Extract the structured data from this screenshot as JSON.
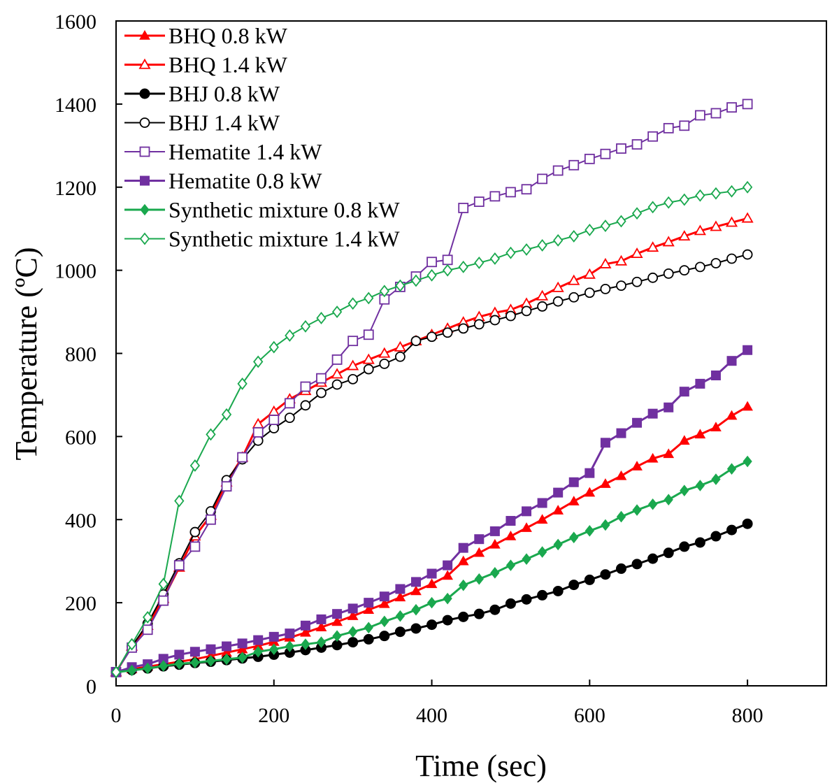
{
  "chart_data": {
    "type": "line",
    "title": "",
    "xlabel": "Time (sec)",
    "ylabel": "Temperature (ºC)",
    "xlim": [
      0,
      900
    ],
    "ylim": [
      0,
      1600
    ],
    "xticks": [
      0,
      200,
      400,
      600,
      800
    ],
    "yticks": [
      0,
      200,
      400,
      600,
      800,
      1000,
      1200,
      1400,
      1600
    ],
    "grid": false,
    "legend_position": "top-left",
    "x": [
      0,
      20,
      40,
      60,
      80,
      100,
      120,
      140,
      160,
      180,
      200,
      220,
      240,
      260,
      280,
      300,
      320,
      340,
      360,
      380,
      400,
      420,
      440,
      460,
      480,
      500,
      520,
      540,
      560,
      580,
      600,
      620,
      640,
      660,
      680,
      700,
      720,
      740,
      760,
      780,
      800
    ],
    "series": [
      {
        "name": "BHQ 0.8 kW",
        "color": "#ff0000",
        "marker": "triangle",
        "filled": true,
        "line_width": 3,
        "values": [
          33,
          40,
          46,
          52,
          58,
          64,
          72,
          80,
          88,
          96,
          106,
          116,
          128,
          141,
          154,
          168,
          183,
          197,
          213,
          228,
          245,
          265,
          300,
          320,
          340,
          360,
          380,
          400,
          422,
          444,
          465,
          486,
          505,
          528,
          547,
          558,
          590,
          605,
          622,
          650,
          672
        ]
      },
      {
        "name": "BHQ 1.4 kW",
        "color": "#ff0000",
        "marker": "triangle",
        "filled": false,
        "line_width": 3,
        "values": [
          33,
          95,
          145,
          210,
          285,
          360,
          410,
          490,
          550,
          630,
          660,
          690,
          710,
          730,
          750,
          770,
          785,
          800,
          815,
          830,
          845,
          860,
          875,
          888,
          898,
          905,
          920,
          938,
          958,
          975,
          990,
          1015,
          1022,
          1040,
          1055,
          1068,
          1082,
          1095,
          1105,
          1115,
          1125
        ]
      },
      {
        "name": "BHJ 0.8 kW",
        "color": "#000000",
        "marker": "circle",
        "filled": true,
        "line_width": 3,
        "values": [
          33,
          38,
          42,
          47,
          51,
          55,
          58,
          62,
          66,
          70,
          75,
          80,
          86,
          92,
          98,
          105,
          112,
          120,
          130,
          138,
          147,
          158,
          166,
          173,
          183,
          198,
          208,
          218,
          228,
          243,
          255,
          268,
          282,
          293,
          306,
          320,
          335,
          345,
          360,
          375,
          390
        ]
      },
      {
        "name": "BHJ 1.4 kW",
        "color": "#000000",
        "marker": "circle",
        "filled": false,
        "line_width": 2,
        "values": [
          33,
          95,
          150,
          220,
          295,
          370,
          420,
          495,
          545,
          590,
          620,
          645,
          675,
          705,
          725,
          738,
          762,
          775,
          792,
          830,
          840,
          850,
          860,
          870,
          880,
          890,
          902,
          913,
          925,
          935,
          946,
          955,
          963,
          972,
          982,
          992,
          1000,
          1008,
          1017,
          1028,
          1038
        ]
      },
      {
        "name": "Hematite 1.4 kW",
        "color": "#7030a0",
        "marker": "square",
        "filled": false,
        "line_width": 2,
        "values": [
          33,
          92,
          135,
          205,
          290,
          335,
          400,
          480,
          550,
          610,
          640,
          680,
          720,
          740,
          785,
          830,
          845,
          930,
          960,
          985,
          1020,
          1025,
          1150,
          1165,
          1178,
          1188,
          1195,
          1220,
          1240,
          1253,
          1268,
          1280,
          1293,
          1303,
          1322,
          1342,
          1348,
          1373,
          1378,
          1392,
          1400
        ]
      },
      {
        "name": "Hematite 0.8 kW",
        "color": "#7030a0",
        "marker": "square",
        "filled": true,
        "line_width": 3,
        "values": [
          33,
          45,
          52,
          65,
          75,
          82,
          88,
          95,
          102,
          110,
          118,
          126,
          145,
          160,
          173,
          186,
          200,
          215,
          233,
          250,
          270,
          290,
          332,
          353,
          372,
          397,
          420,
          440,
          465,
          490,
          512,
          585,
          608,
          633,
          655,
          670,
          708,
          727,
          747,
          782,
          808
        ]
      },
      {
        "name": "Synthetic mixture 0.8 kW",
        "color": "#1aa84e",
        "marker": "diamond",
        "filled": true,
        "line_width": 3,
        "values": [
          33,
          37,
          42,
          48,
          53,
          56,
          60,
          64,
          68,
          82,
          88,
          95,
          100,
          105,
          120,
          130,
          140,
          155,
          168,
          183,
          200,
          210,
          242,
          257,
          272,
          290,
          305,
          322,
          340,
          357,
          373,
          387,
          407,
          423,
          437,
          448,
          470,
          482,
          497,
          522,
          540
        ]
      },
      {
        "name": "Synthetic mixture 1.4 kW",
        "color": "#1aa84e",
        "marker": "diamond",
        "filled": false,
        "line_width": 2,
        "values": [
          33,
          100,
          165,
          245,
          445,
          530,
          605,
          653,
          727,
          780,
          815,
          843,
          865,
          885,
          900,
          920,
          933,
          950,
          963,
          975,
          988,
          1000,
          1008,
          1018,
          1028,
          1042,
          1050,
          1060,
          1072,
          1082,
          1097,
          1107,
          1118,
          1137,
          1152,
          1163,
          1170,
          1180,
          1185,
          1190,
          1200
        ]
      }
    ]
  }
}
